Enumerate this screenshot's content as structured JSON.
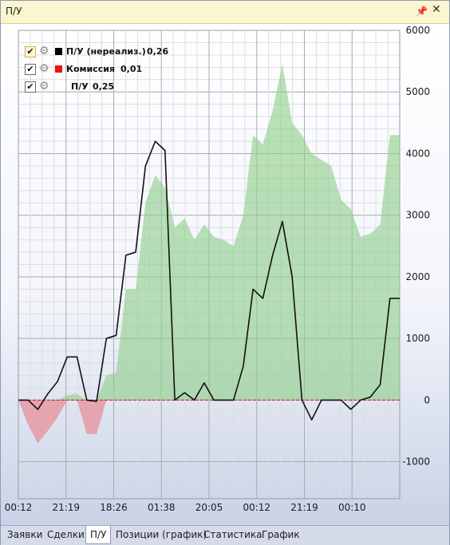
{
  "window": {
    "title": "П/У",
    "pin_icon": "pin-icon",
    "close_icon": "close-icon"
  },
  "legend": [
    {
      "checked": true,
      "label": "П/У (нереализ.)",
      "value": "0,26",
      "color": "#000000",
      "highlighted": true
    },
    {
      "checked": true,
      "label": "Комиссия",
      "value": "0,01",
      "color": "#ee1111",
      "highlighted": false
    },
    {
      "checked": true,
      "label": "П/У",
      "value": "0,25",
      "color": "",
      "highlighted": false
    }
  ],
  "tabs": [
    {
      "label": "Заявки",
      "active": false
    },
    {
      "label": "Сделки",
      "active": false
    },
    {
      "label": "П/У",
      "active": true
    },
    {
      "label": "Позиции (график)",
      "active": false
    },
    {
      "label": "Статистика",
      "active": false
    },
    {
      "label": "График",
      "active": false
    }
  ],
  "chart_data": {
    "type": "line",
    "ylim": [
      -1600,
      6000
    ],
    "ytick_labels": [
      "6000",
      "5000",
      "4000",
      "3000",
      "2000",
      "1000",
      "0",
      "-1000"
    ],
    "yticks": [
      6000,
      5000,
      4000,
      3000,
      2000,
      1000,
      0,
      -1000
    ],
    "xtick_labels": [
      "00:12",
      "21:19",
      "18:26",
      "01:38",
      "20:05",
      "00:12",
      "21:19",
      "00:10"
    ],
    "grid": true,
    "legend_position": "top-left",
    "zero_line_color": "#dd2222",
    "area_series": {
      "name": "П/У",
      "color_positive": "#8fcf8a",
      "color_negative": "#e6909a",
      "x": [
        0,
        1,
        2,
        3,
        4,
        5,
        6,
        7,
        8,
        9,
        10,
        11,
        12,
        13,
        14,
        15,
        16,
        17,
        18,
        19,
        20,
        21,
        22,
        23,
        24,
        25,
        26,
        27,
        28,
        29,
        30,
        31,
        32,
        33,
        34,
        35,
        36,
        37,
        38,
        39
      ],
      "values": [
        0,
        -400,
        -700,
        -500,
        -280,
        80,
        100,
        -550,
        -550,
        400,
        450,
        1800,
        1800,
        3200,
        3650,
        3450,
        2800,
        2950,
        2600,
        2850,
        2650,
        2600,
        2500,
        3000,
        4300,
        4150,
        4700,
        5450,
        4500,
        4300,
        4000,
        3900,
        3800,
        3250,
        3100,
        2650,
        2700,
        2850,
        4300,
        4300
      ]
    },
    "line_series": {
      "name": "П/У (нереализ.)",
      "color": "#111111",
      "x": [
        0,
        1,
        2,
        3,
        4,
        5,
        6,
        7,
        8,
        9,
        10,
        11,
        12,
        13,
        14,
        15,
        16,
        17,
        18,
        19,
        20,
        21,
        22,
        23,
        24,
        25,
        26,
        27,
        28,
        29,
        30,
        31,
        32,
        33,
        34,
        35,
        36,
        37,
        38,
        39
      ],
      "values": [
        0,
        0,
        -150,
        100,
        300,
        700,
        700,
        0,
        -20,
        1000,
        1050,
        2350,
        2400,
        3800,
        4200,
        4050,
        0,
        120,
        0,
        280,
        0,
        0,
        0,
        550,
        1800,
        1650,
        2350,
        2900,
        2000,
        0,
        -320,
        0,
        0,
        0,
        -150,
        0,
        50,
        250,
        1650,
        1650
      ]
    },
    "x_count": 40
  }
}
